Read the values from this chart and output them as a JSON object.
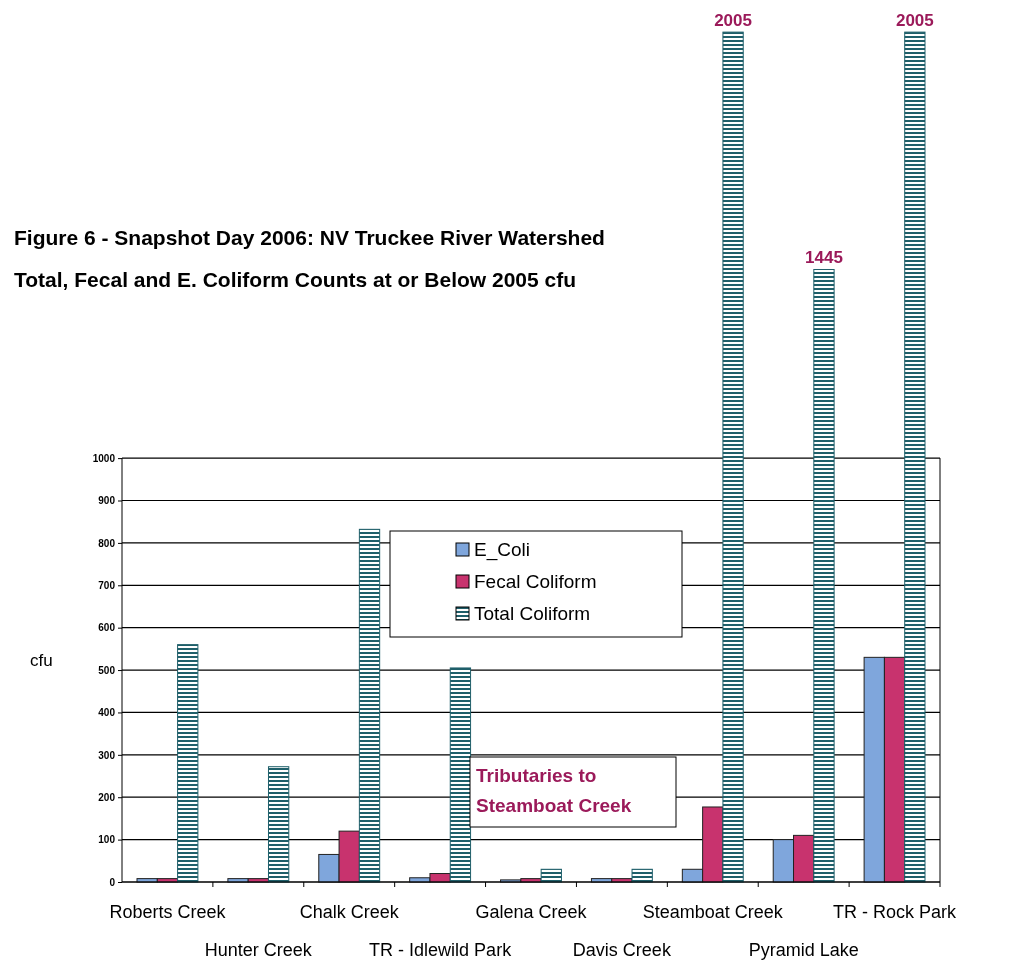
{
  "chart_data": {
    "type": "bar",
    "title": "Figure 6 - Snapshot Day 2006: NV Truckee River Watershed",
    "subtitle": "Total, Fecal and E. Coliform Counts at or Below 2005 cfu",
    "ylabel": "cfu",
    "categories": [
      "Roberts Creek",
      "Hunter Creek",
      "Chalk Creek",
      "TR - Idlewild Park",
      "Galena Creek",
      "Davis Creek",
      "Steamboat Creek",
      "Pyramid Lake",
      "TR - Rock Park"
    ],
    "series": [
      {
        "name": "E_Coli",
        "color": "#7fa6dc",
        "values": [
          8,
          8,
          65,
          10,
          5,
          8,
          30,
          100,
          530
        ]
      },
      {
        "name": "Fecal Coliform",
        "color": "#c8336e",
        "values": [
          8,
          8,
          120,
          20,
          8,
          8,
          177,
          110,
          530
        ]
      },
      {
        "name": "Total Coliform",
        "color": "#1f5f6a",
        "values": [
          560,
          272,
          832,
          505,
          30,
          30,
          2005,
          1445,
          2005
        ],
        "value_labels": [
          null,
          null,
          null,
          null,
          null,
          null,
          "2005",
          "1445",
          "2005"
        ]
      }
    ],
    "ylim": [
      0,
      2010
    ],
    "yticks": [
      0,
      100,
      200,
      300,
      400,
      500,
      600,
      700,
      800,
      900,
      1000
    ],
    "grid": "y",
    "legend": "bottom",
    "annotations": [
      "Tributaries to Steamboat Creek"
    ]
  }
}
